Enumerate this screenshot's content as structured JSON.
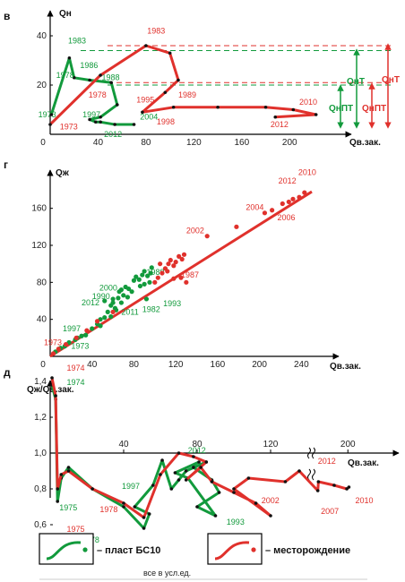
{
  "colors": {
    "green": "#129a3c",
    "red": "#e0312c",
    "axis": "#000000"
  },
  "legend": {
    "green_label": "– пласт БС10",
    "red_label": "– месторождение"
  },
  "footnote": "все в усл.ед.",
  "chart_data": [
    {
      "panel": "в",
      "type": "line",
      "ylabel": "Qн",
      "xlabel": "Qв.зак.",
      "xticks": [
        "0",
        "40",
        "80",
        "120",
        "160",
        "200"
      ],
      "yticks": [
        "0",
        "20",
        "40"
      ],
      "xlim": [
        0,
        235
      ],
      "ylim": [
        0,
        42
      ],
      "series": [
        {
          "name": "пласт БС10",
          "color": "green",
          "x": [
            1,
            16,
            20,
            33,
            51,
            56,
            42,
            33,
            38,
            42,
            54,
            70
          ],
          "y": [
            8,
            31,
            23,
            22,
            21,
            12,
            7,
            6,
            5,
            5,
            4,
            4
          ],
          "labels": [
            {
              "text": "1973",
              "x": -10,
              "y": 7
            },
            {
              "text": "1983",
              "x": 15,
              "y": 37
            },
            {
              "text": "1978",
              "x": 5,
              "y": 23
            },
            {
              "text": "1986",
              "x": 25,
              "y": 27
            },
            {
              "text": "1988",
              "x": 43,
              "y": 22
            },
            {
              "text": "1997",
              "x": 27,
              "y": 7
            },
            {
              "text": "2004",
              "x": 75,
              "y": 6
            },
            {
              "text": "2012",
              "x": 45,
              "y": -1
            }
          ]
        },
        {
          "name": "месторождение",
          "color": "red",
          "x": [
            0,
            42,
            80,
            100,
            107,
            96,
            77,
            103,
            140,
            180,
            203,
            222,
            188
          ],
          "y": [
            4,
            24,
            36,
            33,
            22,
            17,
            9,
            11,
            11,
            11,
            10,
            8,
            7
          ],
          "labels": [
            {
              "text": "1973",
              "x": 8,
              "y": 2
            },
            {
              "text": "1983",
              "x": 81,
              "y": 41
            },
            {
              "text": "1978",
              "x": 32,
              "y": 15
            },
            {
              "text": "1989",
              "x": 107,
              "y": 15
            },
            {
              "text": "1995",
              "x": 72,
              "y": 13
            },
            {
              "text": "1998",
              "x": 89,
              "y": 4
            },
            {
              "text": "2010",
              "x": 208,
              "y": 12
            },
            {
              "text": "2012",
              "x": 184,
              "y": 3
            }
          ]
        }
      ],
      "reference_lines": [
        {
          "y": 34,
          "color": "green",
          "label": "QнТ"
        },
        {
          "y": 20,
          "color": "green",
          "label": "QнПТ"
        },
        {
          "y": 36,
          "color": "red",
          "label": "QнТ"
        },
        {
          "y": 21,
          "color": "red",
          "label": "QнПТ"
        }
      ]
    },
    {
      "panel": "г",
      "type": "scatter",
      "ylabel": "Qж",
      "xlabel": "Qв.зак.",
      "xticks": [
        "0",
        "40",
        "80",
        "120",
        "160",
        "200",
        "240"
      ],
      "yticks": [
        "0",
        "40",
        "80",
        "120",
        "160"
      ],
      "xlim": [
        0,
        260
      ],
      "ylim": [
        0,
        180
      ],
      "trend": {
        "x": [
          0,
          250
        ],
        "y": [
          0,
          178
        ]
      },
      "series": [
        {
          "name": "пласт БС10",
          "color": "green",
          "points": [
            [
              5,
              5
            ],
            [
              10,
              9
            ],
            [
              18,
              15
            ],
            [
              24,
              18
            ],
            [
              30,
              22
            ],
            [
              40,
              30
            ],
            [
              45,
              35
            ],
            [
              48,
              40
            ],
            [
              52,
              42
            ],
            [
              55,
              48
            ],
            [
              58,
              55
            ],
            [
              60,
              58
            ],
            [
              62,
              52
            ],
            [
              65,
              63
            ],
            [
              66,
              70
            ],
            [
              68,
              72
            ],
            [
              70,
              66
            ],
            [
              72,
              75
            ],
            [
              75,
              73
            ],
            [
              78,
              70
            ],
            [
              80,
              82
            ],
            [
              82,
              86
            ],
            [
              85,
              83
            ],
            [
              88,
              88
            ],
            [
              90,
              92
            ],
            [
              93,
              87
            ],
            [
              96,
              90
            ],
            [
              97,
              96
            ],
            [
              52,
              60
            ],
            [
              60,
              62
            ],
            [
              68,
              58
            ],
            [
              74,
              64
            ],
            [
              86,
              76
            ],
            [
              90,
              78
            ],
            [
              92,
              62
            ],
            [
              95,
              80
            ],
            [
              58,
              43
            ],
            [
              63,
              50
            ],
            [
              48,
              33
            ],
            [
              34,
              23
            ],
            [
              26,
              20
            ],
            [
              14,
              11
            ]
          ],
          "labels": [
            {
              "text": "1973",
              "x": 20,
              "y": 8
            },
            {
              "text": "1997",
              "x": 12,
              "y": 27
            },
            {
              "text": "2012",
              "x": 30,
              "y": 55
            },
            {
              "text": "1990",
              "x": 40,
              "y": 62
            },
            {
              "text": "2000",
              "x": 47,
              "y": 71
            },
            {
              "text": "2011",
              "x": 68,
              "y": 45
            },
            {
              "text": "1982",
              "x": 88,
              "y": 48
            },
            {
              "text": "1993",
              "x": 108,
              "y": 54
            },
            {
              "text": "1989",
              "x": 92,
              "y": 88
            }
          ]
        },
        {
          "name": "месторождение",
          "color": "red",
          "points": [
            [
              3,
              3
            ],
            [
              8,
              8
            ],
            [
              15,
              13
            ],
            [
              25,
              20
            ],
            [
              35,
              28
            ],
            [
              45,
              38
            ],
            [
              60,
              48
            ],
            [
              100,
              80
            ],
            [
              103,
              85
            ],
            [
              107,
              90
            ],
            [
              110,
              95
            ],
            [
              113,
              100
            ],
            [
              115,
              104
            ],
            [
              118,
              98
            ],
            [
              120,
              102
            ],
            [
              123,
              108
            ],
            [
              126,
              105
            ],
            [
              128,
              110
            ],
            [
              105,
              100
            ],
            [
              112,
              92
            ],
            [
              118,
              84
            ],
            [
              125,
              85
            ],
            [
              130,
              80
            ],
            [
              150,
              130
            ],
            [
              178,
              140
            ],
            [
              205,
              155
            ],
            [
              212,
              158
            ],
            [
              222,
              165
            ],
            [
              228,
              167
            ],
            [
              232,
              170
            ],
            [
              238,
              172
            ],
            [
              243,
              177
            ]
          ],
          "labels": [
            {
              "text": "1973",
              "x": -6,
              "y": 12
            },
            {
              "text": "1987",
              "x": 125,
              "y": 85
            },
            {
              "text": "2002",
              "x": 130,
              "y": 133
            },
            {
              "text": "2004",
              "x": 187,
              "y": 158
            },
            {
              "text": "2006",
              "x": 217,
              "y": 147
            },
            {
              "text": "2012",
              "x": 218,
              "y": 187
            },
            {
              "text": "2010",
              "x": 237,
              "y": 196
            }
          ]
        }
      ]
    },
    {
      "panel": "д",
      "type": "line",
      "ylabel": "Qж/Qв.зак.",
      "xlabel": "Qв.зак.",
      "xticks": [
        "40",
        "80",
        "120",
        "200"
      ],
      "yticks": [
        "0,6",
        "0,8",
        "1,0",
        "1,2",
        "1,4"
      ],
      "ylim": [
        0.5,
        1.5
      ],
      "x_axis_break": true,
      "series": [
        {
          "name": "пласт БС10",
          "color": "green",
          "x": [
            1,
            3,
            4,
            6,
            10,
            23,
            40,
            51,
            54,
            46,
            56,
            61,
            66,
            70,
            74,
            85,
            78,
            88,
            92,
            80,
            90,
            75,
            68,
            81
          ],
          "y": [
            1.38,
            1.3,
            0.73,
            0.86,
            0.92,
            0.8,
            0.7,
            0.58,
            0.66,
            0.7,
            0.82,
            0.96,
            0.8,
            0.85,
            0.9,
            0.95,
            0.92,
            0.85,
            0.78,
            0.7,
            0.65,
            0.86,
            0.89,
            0.95
          ],
          "labels": [
            {
              "text": "1974",
              "x": 9,
              "y": 1.38
            },
            {
              "text": "1975",
              "x": 5,
              "y": 0.68
            },
            {
              "text": "1978",
              "x": 17,
              "y": 0.5
            },
            {
              "text": "1997",
              "x": 39,
              "y": 0.8
            },
            {
              "text": "2012",
              "x": 75,
              "y": 1.0
            },
            {
              "text": "1993",
              "x": 96,
              "y": 0.6
            }
          ]
        },
        {
          "name": "месторождение",
          "color": "red",
          "x": [
            1,
            3,
            4,
            6,
            10,
            23,
            40,
            51,
            60,
            70,
            78,
            85,
            74,
            82,
            88,
            100,
            112,
            120,
            100,
            108,
            128,
            140,
            158,
            172,
            187,
            199,
            201
          ],
          "y": [
            1.42,
            1.32,
            0.8,
            0.88,
            0.9,
            0.8,
            0.72,
            0.64,
            0.88,
            1.0,
            0.98,
            0.95,
            0.85,
            0.92,
            0.84,
            0.78,
            0.72,
            0.65,
            0.8,
            0.86,
            0.84,
            0.9,
            0.79,
            0.84,
            0.82,
            0.8,
            0.81
          ],
          "labels": [
            {
              "text": "1974",
              "x": 9,
              "y": 1.46
            },
            {
              "text": "1975",
              "x": 9,
              "y": 0.56
            },
            {
              "text": "1978",
              "x": 27,
              "y": 0.67
            },
            {
              "text": "2002",
              "x": 115,
              "y": 0.72
            },
            {
              "text": "1993",
              "x": 98,
              "y": 0.52
            },
            {
              "text": "2012",
              "x": 158,
              "y": 0.94
            },
            {
              "text": "2007",
              "x": 161,
              "y": 0.66
            },
            {
              "text": "2010",
              "x": 207,
              "y": 0.72
            }
          ]
        }
      ]
    }
  ]
}
